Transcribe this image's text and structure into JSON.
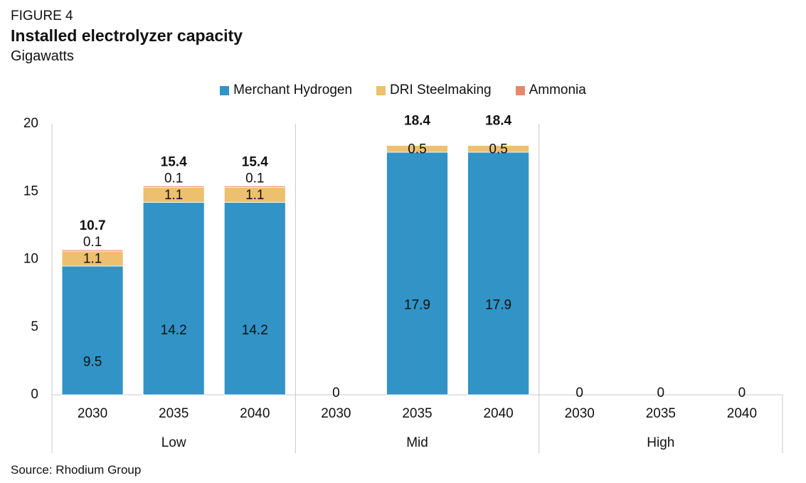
{
  "figure_label": "FIGURE 4",
  "title": "Installed electrolyzer capacity",
  "subtitle": "Gigawatts",
  "source": "Source: Rhodium Group",
  "colors": {
    "Merchant Hydrogen": "#3193c6",
    "DRI Steelmaking": "#ecc06f",
    "Ammonia": "#e5876a"
  },
  "legend": [
    "Merchant Hydrogen",
    "DRI Steelmaking",
    "Ammonia"
  ],
  "chart_data": {
    "type": "bar",
    "stacked": true,
    "groups": [
      {
        "name": "Low",
        "categories": [
          "2030",
          "2035",
          "2040"
        ]
      },
      {
        "name": "Mid",
        "categories": [
          "2030",
          "2035",
          "2040"
        ]
      },
      {
        "name": "High",
        "categories": [
          "2030",
          "2035",
          "2040"
        ]
      }
    ],
    "series": [
      {
        "name": "Merchant Hydrogen",
        "values": [
          9.5,
          14.2,
          14.2,
          0,
          17.9,
          17.9,
          0,
          0,
          0
        ],
        "labels": [
          "9.5",
          "14.2",
          "14.2",
          "",
          "17.9",
          "17.9",
          "",
          "",
          ""
        ]
      },
      {
        "name": "DRI Steelmaking",
        "values": [
          1.1,
          1.1,
          1.1,
          0,
          0.5,
          0.5,
          0,
          0,
          0
        ],
        "labels": [
          "1.1",
          "1.1",
          "1.1",
          "",
          "0.5",
          "0.5",
          "",
          "",
          ""
        ]
      },
      {
        "name": "Ammonia",
        "values": [
          0.1,
          0.1,
          0.1,
          0,
          0,
          0,
          0,
          0,
          0
        ],
        "labels": [
          "0.1",
          "0.1",
          "0.1",
          "",
          "",
          "",
          "",
          "",
          ""
        ]
      }
    ],
    "totals": [
      10.7,
      15.4,
      15.4,
      0,
      18.4,
      18.4,
      0,
      0,
      0
    ],
    "total_labels": [
      "10.7",
      "15.4",
      "15.4",
      "0",
      "18.4",
      "18.4",
      "0",
      "0",
      "0"
    ],
    "yticks": [
      "0",
      "5",
      "10",
      "15",
      "20"
    ],
    "ylim": [
      0,
      20
    ],
    "grid": false,
    "legend_position": "top-center"
  }
}
